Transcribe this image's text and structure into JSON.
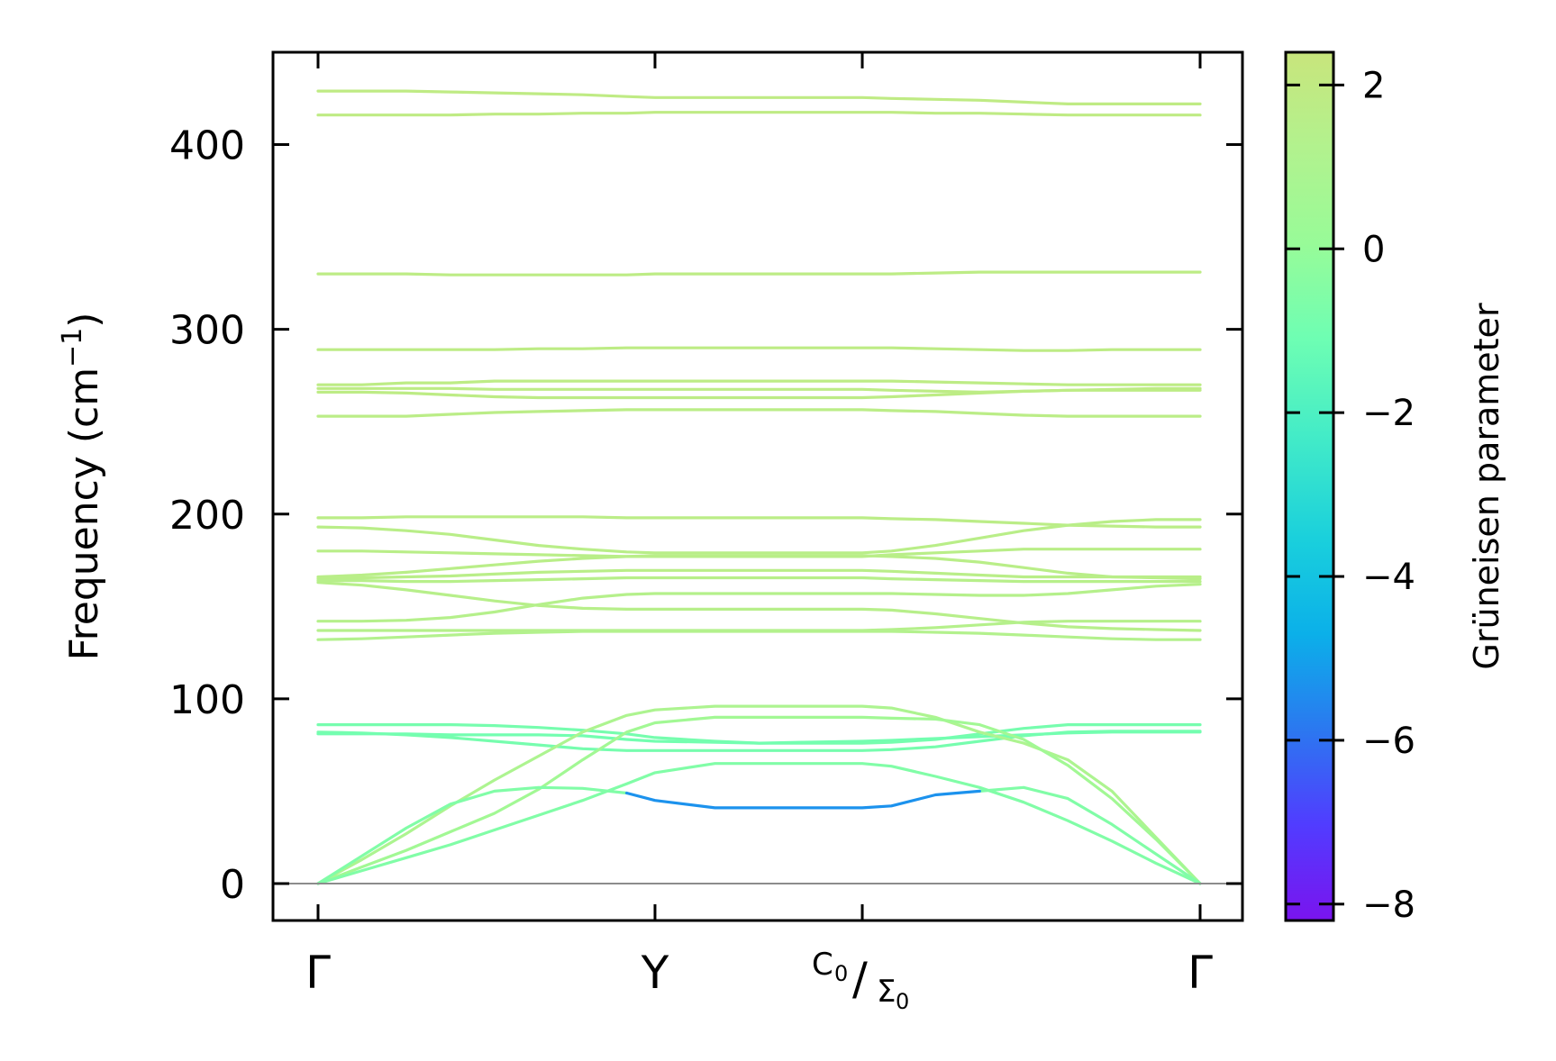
{
  "chart_data": {
    "type": "line",
    "title": "",
    "xlabel": "",
    "ylabel": "Frequency (cm−1)",
    "ylabel_parts": {
      "main": "Frequency (cm",
      "sup": "−1",
      "close": ")"
    },
    "ylim": [
      -20,
      450
    ],
    "yticks": [
      0,
      100,
      200,
      300,
      400
    ],
    "ytick_labels": [
      "0",
      "100",
      "200",
      "300",
      "400"
    ],
    "kpoints": [
      {
        "label": "Γ",
        "x": 0.0
      },
      {
        "label": "Y",
        "x": 0.382
      },
      {
        "label": "C0/Σ0",
        "x": 0.617,
        "main": "C",
        "sub1": "0",
        "slash": "/",
        "main2": "Σ",
        "sub2": "0"
      },
      {
        "label": "Γ",
        "x": 1.0
      }
    ],
    "zero_line": 0,
    "colorbar": {
      "label": "Grüneisen parameter",
      "range": [
        -8.2,
        2.4
      ],
      "ticks": [
        2,
        0,
        -2,
        -4,
        -6,
        -8
      ],
      "tick_labels": [
        "2",
        "0",
        "−2",
        "−4",
        "−6",
        "−8"
      ],
      "colormap": [
        "#7a14ee",
        "#513cff",
        "#2b78f0",
        "#0bb0e9",
        "#1ad0dc",
        "#44ecc7",
        "#6efeb3",
        "#98fb98",
        "#b2f28e",
        "#c8e57c"
      ]
    },
    "x": [
      0,
      0.05,
      0.1,
      0.15,
      0.2,
      0.25,
      0.3,
      0.35,
      0.382,
      0.45,
      0.5,
      0.55,
      0.617,
      0.65,
      0.7,
      0.75,
      0.8,
      0.85,
      0.9,
      0.95,
      1.0
    ],
    "series": [
      {
        "name": "band-1",
        "gamma": 1.9,
        "values": [
          429,
          429,
          429,
          428.5,
          428,
          427.5,
          427,
          426,
          425.5,
          425.5,
          425.5,
          425.5,
          425.5,
          425,
          424.5,
          424,
          423,
          422,
          422,
          422,
          422
        ]
      },
      {
        "name": "band-2",
        "gamma": 1.9,
        "values": [
          416,
          416,
          416,
          416,
          416.5,
          416.5,
          417,
          417,
          417.5,
          417.5,
          417.5,
          417.5,
          417.5,
          417.5,
          417,
          417,
          416.5,
          416,
          416,
          416,
          416
        ]
      },
      {
        "name": "band-3",
        "gamma": 1.8,
        "values": [
          330,
          330,
          330,
          329.5,
          329.5,
          329.5,
          329.5,
          329.5,
          330,
          330,
          330,
          330,
          330,
          330,
          330.5,
          331,
          331,
          331,
          331,
          331,
          331
        ]
      },
      {
        "name": "band-4",
        "gamma": 1.8,
        "values": [
          289,
          289,
          289,
          289,
          289,
          289.5,
          289.5,
          290,
          290,
          290,
          290,
          290,
          290,
          290,
          289.5,
          289,
          288.5,
          288.5,
          289,
          289,
          289
        ]
      },
      {
        "name": "band-5",
        "gamma": 1.8,
        "values": [
          270,
          270,
          271,
          271,
          272,
          272,
          272,
          272,
          272,
          272,
          272,
          272,
          272,
          272,
          271.5,
          271,
          270.5,
          270,
          270,
          270,
          270
        ]
      },
      {
        "name": "band-6",
        "gamma": 1.8,
        "values": [
          268,
          268,
          268,
          268,
          267.5,
          267.5,
          267.5,
          267.5,
          267.5,
          267.5,
          267.5,
          267.5,
          267.5,
          267,
          266.5,
          266,
          266.5,
          267,
          267.5,
          268,
          268
        ]
      },
      {
        "name": "band-7",
        "gamma": 1.8,
        "values": [
          266,
          266,
          265.5,
          264.5,
          263.5,
          263,
          263,
          263,
          263,
          263,
          263,
          263,
          263,
          263.5,
          264.5,
          265.5,
          266.5,
          267,
          267,
          267,
          267
        ]
      },
      {
        "name": "band-8",
        "gamma": 1.7,
        "values": [
          253,
          253,
          253,
          254,
          255,
          255.5,
          256,
          256.5,
          256.5,
          256.5,
          256.5,
          256.5,
          256.5,
          256,
          255.5,
          254.5,
          253.5,
          253,
          253,
          253,
          253
        ]
      },
      {
        "name": "band-9",
        "gamma": 1.7,
        "values": [
          198,
          198,
          198.5,
          198.5,
          198.5,
          198.5,
          198.5,
          198,
          198,
          198,
          198,
          198,
          198,
          197.5,
          197,
          196,
          195,
          194,
          193.5,
          193,
          193
        ]
      },
      {
        "name": "band-10",
        "gamma": 1.6,
        "values": [
          193,
          192.5,
          191,
          189,
          186,
          183,
          181,
          179.5,
          179,
          179,
          179,
          179,
          179,
          180,
          183,
          187,
          191,
          194,
          196,
          197,
          197
        ]
      },
      {
        "name": "band-11",
        "gamma": 1.6,
        "values": [
          180,
          180,
          179.5,
          179,
          178.5,
          178,
          177.5,
          177,
          177,
          177,
          177,
          177,
          177,
          178,
          179,
          180,
          181,
          181,
          181,
          181,
          181
        ]
      },
      {
        "name": "band-12",
        "gamma": 1.6,
        "values": [
          166,
          167,
          168.5,
          170.5,
          172.5,
          174.5,
          176,
          177,
          177.5,
          177.5,
          177.5,
          177.5,
          177.5,
          177,
          176,
          174,
          171,
          168,
          166,
          165.5,
          165
        ]
      },
      {
        "name": "band-13",
        "gamma": 1.6,
        "values": [
          165,
          165.5,
          166,
          166.5,
          167.5,
          168.5,
          169,
          169.5,
          169.5,
          169.5,
          169.5,
          169.5,
          169.5,
          169,
          168,
          167,
          166,
          166,
          166,
          166,
          166
        ]
      },
      {
        "name": "band-14",
        "gamma": 1.5,
        "values": [
          164,
          164,
          163.5,
          163.5,
          164,
          164.5,
          165,
          165.5,
          165.5,
          165.5,
          165.5,
          165.5,
          165.5,
          165,
          164.5,
          164,
          163.5,
          163.5,
          163.5,
          163.5,
          163.5
        ]
      },
      {
        "name": "band-15",
        "gamma": 1.5,
        "values": [
          163,
          161.5,
          159,
          156,
          153,
          150.5,
          149,
          148.5,
          148.5,
          148.5,
          148.5,
          148.5,
          148.5,
          148,
          146,
          143.5,
          141,
          139,
          138,
          137.5,
          137
        ]
      },
      {
        "name": "band-16",
        "gamma": 1.4,
        "values": [
          142,
          142,
          142.5,
          144,
          147,
          151,
          154.5,
          156.5,
          157,
          157,
          157,
          157,
          157,
          157,
          156.5,
          156,
          156,
          157,
          159,
          161,
          162
        ]
      },
      {
        "name": "band-17",
        "gamma": 1.4,
        "values": [
          137,
          137,
          137,
          137,
          137,
          137,
          137,
          137,
          137,
          137,
          137,
          137,
          137,
          137.5,
          138.5,
          140,
          141.5,
          142,
          142,
          142,
          142
        ]
      },
      {
        "name": "band-18",
        "gamma": 1.3,
        "values": [
          132,
          132.5,
          133.5,
          134.5,
          135.5,
          136,
          136.5,
          136.5,
          136.5,
          136.5,
          136.5,
          136.5,
          136.5,
          136.5,
          136,
          135.5,
          134.5,
          133.5,
          132.5,
          132,
          132
        ]
      },
      {
        "name": "band-19",
        "gamma": -0.9,
        "values": [
          86,
          86,
          86,
          86,
          85.5,
          84.5,
          83,
          81,
          79,
          77,
          76,
          76,
          76,
          76.5,
          78,
          81,
          84,
          86,
          86,
          86,
          86
        ]
      },
      {
        "name": "band-20",
        "gamma": -0.9,
        "values": [
          82,
          81.5,
          80.5,
          79,
          77,
          75,
          73,
          72,
          72,
          72,
          72,
          72,
          72,
          72.5,
          74,
          77,
          80,
          82,
          82.5,
          82.5,
          82.5
        ]
      },
      {
        "name": "band-21",
        "gamma": -1.0,
        "values": [
          81,
          81,
          81,
          80.5,
          80.5,
          80.5,
          80,
          78,
          77,
          76.5,
          76,
          76.5,
          77,
          77.5,
          78.5,
          79.5,
          80.5,
          81.5,
          82,
          82,
          82
        ]
      },
      {
        "name": "band-22",
        "gamma": 1.0,
        "values": [
          0,
          13,
          27,
          42,
          56,
          69,
          82,
          91,
          94,
          96,
          96,
          96,
          96,
          95,
          90,
          82,
          76,
          67,
          50,
          25,
          0
        ]
      },
      {
        "name": "band-23",
        "gamma": 0.5,
        "values": [
          0,
          9,
          18,
          28,
          38,
          51,
          67,
          82,
          87,
          90,
          90,
          90,
          90,
          89.5,
          89,
          86,
          78,
          64,
          46,
          24,
          0
        ]
      },
      {
        "name": "band-24",
        "gamma": -0.6,
        "values": [
          0,
          7,
          14,
          21,
          29,
          37,
          45,
          54,
          60,
          65,
          65,
          65,
          65,
          63.5,
          58,
          52,
          44,
          34,
          23,
          11,
          0
        ]
      },
      {
        "name": "band-25",
        "gamma": -0.6,
        "values": [
          0,
          15,
          30,
          43,
          50,
          52,
          51.5,
          49,
          null,
          null,
          null,
          null,
          null,
          null,
          null,
          50,
          52,
          46,
          32,
          16,
          0
        ]
      },
      {
        "name": "band-26",
        "gamma": -5.3,
        "values": [
          null,
          null,
          null,
          null,
          null,
          null,
          null,
          49,
          45,
          41,
          41,
          41,
          41,
          42,
          48,
          50,
          null,
          null,
          null,
          null,
          null
        ]
      }
    ]
  }
}
